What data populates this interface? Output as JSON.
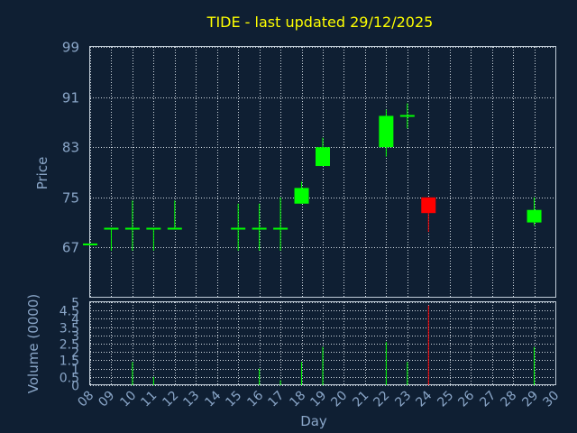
{
  "chart_data": {
    "type": "candlestick",
    "title": "TIDE - last updated 29/12/2025",
    "price_axis": {
      "label": "Price",
      "ylim": [
        59,
        99
      ],
      "ticks": [
        99,
        91,
        83,
        75,
        67
      ]
    },
    "volume_axis": {
      "label": "Volume (0000)",
      "ylim": [
        0,
        5
      ],
      "ticks": [
        "0",
        "0.5",
        "1",
        "1.5",
        "2",
        "2.5",
        "3",
        "3.5",
        "4",
        "4.5",
        "5"
      ]
    },
    "x_axis": {
      "label": "Day",
      "ticks": [
        "08",
        "09",
        "10",
        "11",
        "12",
        "13",
        "14",
        "15",
        "16",
        "17",
        "18",
        "19",
        "20",
        "21",
        "22",
        "23",
        "24",
        "25",
        "26",
        "27",
        "28",
        "29",
        "30"
      ]
    },
    "grid": true,
    "colors": {
      "up": "#00ff00",
      "down": "#ff0000",
      "volume": "#00ff00",
      "volume_highlight": "#ff0000",
      "background": "#0f1f33",
      "title": "#ffff00",
      "axis_text": "#8aa6c8"
    },
    "candles": [
      {
        "day": 8,
        "open": 67.5,
        "close": 67.5,
        "high": 67.5,
        "low": 67.5,
        "volume": 0.0
      },
      {
        "day": 9,
        "open": 70,
        "close": 70,
        "high": 70,
        "low": 66.5,
        "volume": 0.0
      },
      {
        "day": 10,
        "open": 70,
        "close": 70,
        "high": 74.5,
        "low": 66.5,
        "volume": 1.4
      },
      {
        "day": 11,
        "open": 70,
        "close": 70,
        "high": 70,
        "low": 66.5,
        "volume": 0.5
      },
      {
        "day": 12,
        "open": 70,
        "close": 70,
        "high": 74.5,
        "low": 70,
        "volume": 0.0
      },
      {
        "day": 15,
        "open": 70,
        "close": 70,
        "high": 74,
        "low": 66.5,
        "volume": 0.0
      },
      {
        "day": 16,
        "open": 70,
        "close": 70,
        "high": 74,
        "low": 66.5,
        "volume": 1.0
      },
      {
        "day": 17,
        "open": 70,
        "close": 70,
        "high": 75,
        "low": 66.5,
        "volume": 0.3
      },
      {
        "day": 18,
        "open": 74,
        "close": 76.5,
        "high": 77.5,
        "low": 74,
        "volume": 1.4
      },
      {
        "day": 19,
        "open": 80,
        "close": 83,
        "high": 84.5,
        "low": 80,
        "volume": 2.3
      },
      {
        "day": 22,
        "open": 83,
        "close": 88,
        "high": 89,
        "low": 81.5,
        "volume": 2.6
      },
      {
        "day": 23,
        "open": 88,
        "close": 88,
        "high": 90,
        "low": 86,
        "volume": 1.4
      },
      {
        "day": 24,
        "open": 75,
        "close": 72.5,
        "high": 75,
        "low": 69.5,
        "volume": 4.8
      },
      {
        "day": 29,
        "open": 71,
        "close": 73,
        "high": 75,
        "low": 70.5,
        "volume": 2.3
      }
    ]
  }
}
